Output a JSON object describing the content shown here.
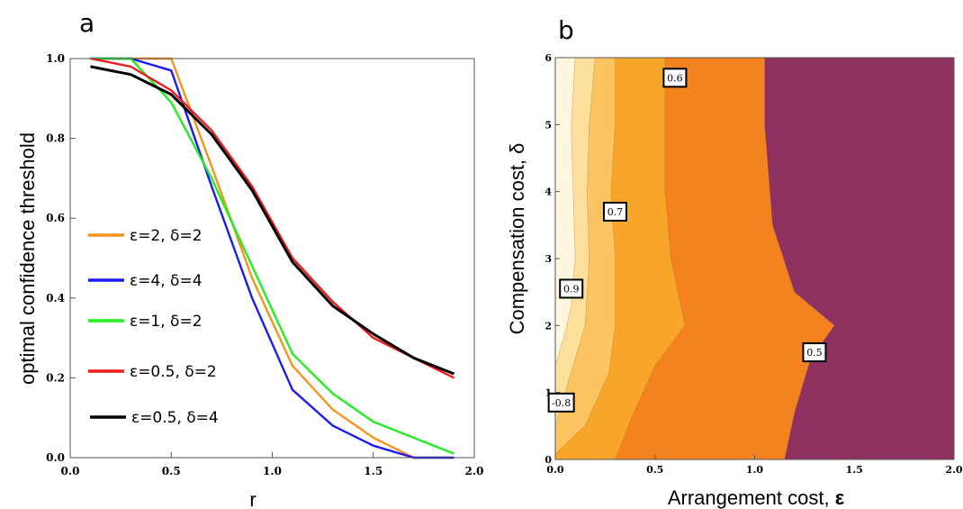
{
  "panels": [
    {
      "label": "a",
      "xlabel": "r",
      "ylabel": "optimal confidence threshold",
      "xticks": [
        "0.0",
        "0.5",
        "1.0",
        "1.5",
        "2.0"
      ],
      "yticks": [
        "0.0",
        "0.2",
        "0.4",
        "0.6",
        "0.8",
        "1.0"
      ]
    },
    {
      "label": "b",
      "xlabel": "Arrangement cost, ",
      "xlabel_symbol": "ε",
      "ylabel": "Compensation cost, δ",
      "xticks": [
        "0.0",
        "0.5",
        "1.0",
        "1.5",
        "2.0"
      ],
      "yticks": [
        "0",
        "1",
        "2",
        "3",
        "4",
        "5",
        "6"
      ]
    }
  ],
  "chart_data": [
    {
      "type": "line",
      "xlabel": "r",
      "ylabel": "optimal confidence threshold",
      "xlim": [
        0,
        2
      ],
      "ylim": [
        0,
        1
      ],
      "grid": false,
      "legend_position": "left",
      "x": [
        0.1,
        0.3,
        0.5,
        0.7,
        0.9,
        1.1,
        1.3,
        1.5,
        1.7,
        1.9
      ],
      "series": [
        {
          "name": "ε=2, δ=2",
          "color": "#f7941d",
          "values": [
            1.0,
            1.0,
            1.0,
            0.73,
            0.45,
            0.23,
            0.12,
            0.05,
            0.0,
            0.0
          ]
        },
        {
          "name": "ε=4, δ=4",
          "color": "#1c1cf0",
          "values": [
            1.0,
            1.0,
            0.97,
            0.68,
            0.4,
            0.17,
            0.08,
            0.03,
            0.0,
            0.0
          ]
        },
        {
          "name": "ε=1, δ=2",
          "color": "#22ee22",
          "values": [
            1.0,
            1.0,
            0.89,
            0.7,
            0.48,
            0.26,
            0.16,
            0.09,
            0.05,
            0.01
          ]
        },
        {
          "name": "ε=0.5, δ=2",
          "color": "#ee1c1c",
          "values": [
            1.0,
            0.98,
            0.92,
            0.82,
            0.68,
            0.5,
            0.39,
            0.3,
            0.25,
            0.2
          ]
        },
        {
          "name": "ε=0.5, δ=4",
          "color": "#000000",
          "values": [
            0.98,
            0.96,
            0.91,
            0.81,
            0.67,
            0.49,
            0.38,
            0.31,
            0.25,
            0.21
          ]
        }
      ],
      "legend": [
        {
          "label": "ε=2, δ=2",
          "color": "#f7941d"
        },
        {
          "label": "ε=4, δ=4",
          "color": "#1c1cf0"
        },
        {
          "label": "ε=1, δ=2",
          "color": "#22ee22"
        },
        {
          "label": "ε=0.5, δ=2",
          "color": "#ee1c1c"
        },
        {
          "label": "ε=0.5, δ=4",
          "color": "#000000"
        }
      ]
    },
    {
      "type": "contour",
      "xlabel": "Arrangement cost, ε",
      "ylabel": "Compensation cost, δ",
      "xlim": [
        0,
        2
      ],
      "ylim": [
        0,
        6
      ],
      "levels": [
        {
          "value": 0.5,
          "color": "#8e3060"
        },
        {
          "value": 0.6,
          "color": "#f4831f"
        },
        {
          "value": 0.7,
          "color": "#f8a629"
        },
        {
          "value": 0.8,
          "color": "#fbc460"
        },
        {
          "value": 0.9,
          "color": "#fddf9c"
        },
        {
          "value": 1.0,
          "color": "#fef6df"
        }
      ],
      "boundaries": [
        {
          "level": 0.9,
          "points": [
            [
              0,
              1.4
            ],
            [
              0.05,
              1.9
            ],
            [
              0.08,
              2.3
            ],
            [
              0.1,
              3.0
            ],
            [
              0.09,
              4.0
            ],
            [
              0.08,
              5.0
            ],
            [
              0.1,
              6.0
            ]
          ]
        },
        {
          "level": 0.8,
          "points": [
            [
              0,
              0.5
            ],
            [
              0.08,
              1.3
            ],
            [
              0.15,
              2.0
            ],
            [
              0.17,
              3.0
            ],
            [
              0.16,
              4.0
            ],
            [
              0.17,
              5.0
            ],
            [
              0.2,
              6.0
            ]
          ]
        },
        {
          "level": 0.7,
          "points": [
            [
              0,
              0.08
            ],
            [
              0.15,
              0.5
            ],
            [
              0.27,
              1.3
            ],
            [
              0.3,
              2.0
            ],
            [
              0.3,
              3.0
            ],
            [
              0.28,
              4.0
            ],
            [
              0.3,
              5.0
            ],
            [
              0.3,
              6.0
            ]
          ]
        },
        {
          "level": 0.6,
          "points": [
            [
              0.3,
              0
            ],
            [
              0.38,
              0.6
            ],
            [
              0.5,
              1.4
            ],
            [
              0.65,
              2.0
            ],
            [
              0.58,
              3.0
            ],
            [
              0.55,
              4.0
            ],
            [
              0.55,
              5.0
            ],
            [
              0.55,
              6.0
            ]
          ]
        },
        {
          "level": 0.5,
          "points": [
            [
              1.15,
              0
            ],
            [
              1.2,
              0.7
            ],
            [
              1.28,
              1.5
            ],
            [
              1.4,
              2.0
            ],
            [
              1.2,
              2.5
            ],
            [
              1.09,
              3.5
            ],
            [
              1.05,
              5.0
            ],
            [
              1.05,
              6.0
            ]
          ]
        }
      ],
      "contour_labels": [
        {
          "text": "0.6",
          "x": 0.6,
          "y": 5.7
        },
        {
          "text": "0.7",
          "x": 0.3,
          "y": 3.7
        },
        {
          "text": "0.9",
          "x": 0.08,
          "y": 2.55
        },
        {
          "text": "-0.8",
          "x": 0.03,
          "y": 0.85
        },
        {
          "text": "0.5",
          "x": 1.3,
          "y": 1.6
        }
      ]
    }
  ]
}
